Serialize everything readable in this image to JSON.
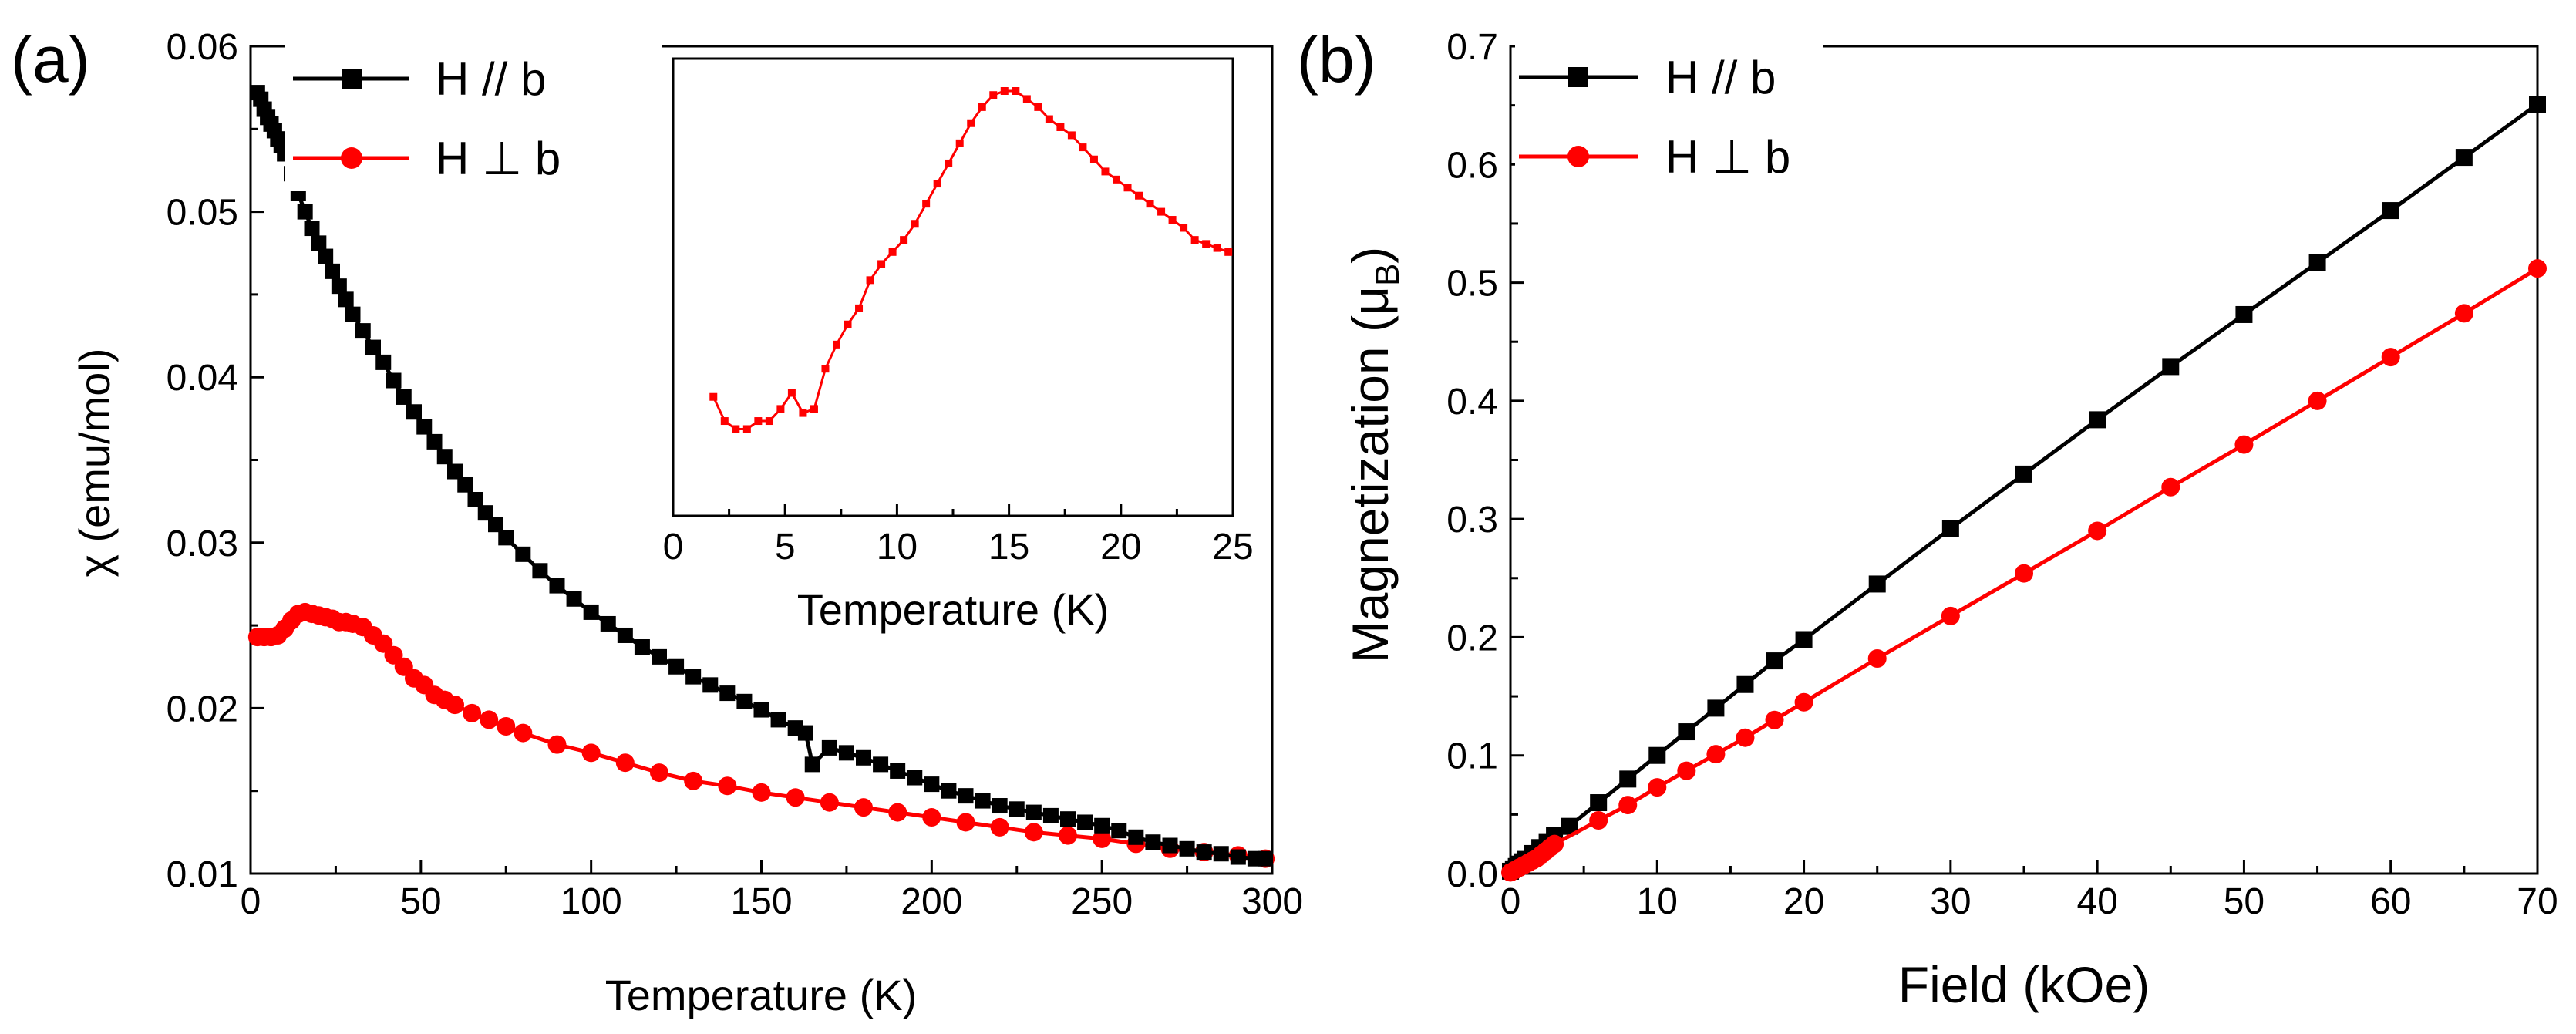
{
  "panels": [
    {
      "id": "a",
      "label": "(a)"
    },
    {
      "id": "b",
      "label": "(b)"
    }
  ],
  "chart_data": [
    {
      "type": "line",
      "panel": "(a)",
      "xlabel": "Temperature (K)",
      "ylabel": "χ (emu/mol)",
      "xlim": [
        0,
        300
      ],
      "ylim": [
        0.01,
        0.06
      ],
      "xticks": [
        "0",
        "50",
        "100",
        "150",
        "200",
        "250",
        "300"
      ],
      "yticks": [
        "0.01",
        "0.02",
        "0.03",
        "0.04",
        "0.05",
        "0.06"
      ],
      "legend_position": "top-left",
      "series": [
        {
          "name": "H // b",
          "color": "#000000",
          "marker": "square",
          "x": [
            2,
            3,
            4,
            5,
            6,
            7,
            8,
            9,
            10,
            12,
            14,
            16,
            18,
            20,
            22,
            24,
            26,
            28,
            30,
            33,
            36,
            39,
            42,
            45,
            48,
            51,
            54,
            57,
            60,
            63,
            66,
            69,
            72,
            75,
            80,
            85,
            90,
            95,
            100,
            105,
            110,
            115,
            120,
            125,
            130,
            135,
            140,
            145,
            150,
            155,
            160,
            163,
            165,
            170,
            175,
            180,
            185,
            190,
            195,
            200,
            205,
            210,
            215,
            220,
            225,
            230,
            235,
            240,
            245,
            250,
            255,
            260,
            265,
            270,
            275,
            280,
            285,
            290,
            295,
            298
          ],
          "y": [
            0.0572,
            0.0568,
            0.0562,
            0.0557,
            0.0553,
            0.0549,
            0.0544,
            0.054,
            0.0535,
            0.0523,
            0.0511,
            0.05,
            0.049,
            0.0481,
            0.0473,
            0.0464,
            0.0455,
            0.0447,
            0.0438,
            0.0428,
            0.0418,
            0.0409,
            0.0398,
            0.0388,
            0.0379,
            0.037,
            0.0361,
            0.0352,
            0.0343,
            0.0335,
            0.0326,
            0.0318,
            0.0311,
            0.0303,
            0.0293,
            0.0283,
            0.0274,
            0.0266,
            0.0258,
            0.0251,
            0.0244,
            0.0237,
            0.0231,
            0.0225,
            0.0219,
            0.0214,
            0.0209,
            0.0204,
            0.0199,
            0.0193,
            0.0188,
            0.0185,
            0.0166,
            0.0176,
            0.0173,
            0.017,
            0.0166,
            0.0162,
            0.0158,
            0.0154,
            0.015,
            0.0147,
            0.0144,
            0.0141,
            0.0139,
            0.0137,
            0.0135,
            0.0133,
            0.0131,
            0.0129,
            0.0126,
            0.0122,
            0.0119,
            0.0117,
            0.0115,
            0.0113,
            0.0112,
            0.011,
            0.0109,
            0.0109
          ]
        },
        {
          "name": "H ⊥ b",
          "color": "#ff0000",
          "marker": "circle",
          "x": [
            2,
            4,
            6,
            8,
            10,
            12,
            14,
            16,
            18,
            20,
            22,
            24,
            26,
            28,
            30,
            33,
            36,
            39,
            42,
            45,
            48,
            51,
            54,
            57,
            60,
            65,
            70,
            75,
            80,
            90,
            100,
            110,
            120,
            130,
            140,
            150,
            160,
            170,
            180,
            190,
            200,
            210,
            220,
            230,
            240,
            250,
            260,
            270,
            280,
            290,
            298
          ],
          "y": [
            0.0243,
            0.0243,
            0.0243,
            0.0244,
            0.0248,
            0.0253,
            0.0257,
            0.0258,
            0.0257,
            0.0256,
            0.0255,
            0.0254,
            0.0252,
            0.0252,
            0.0251,
            0.0249,
            0.0244,
            0.0239,
            0.0232,
            0.0225,
            0.0218,
            0.0214,
            0.0208,
            0.0205,
            0.0202,
            0.0197,
            0.0193,
            0.0189,
            0.0185,
            0.0178,
            0.0173,
            0.0167,
            0.0161,
            0.0156,
            0.0153,
            0.0149,
            0.0146,
            0.0143,
            0.014,
            0.0137,
            0.0134,
            0.0131,
            0.0128,
            0.0125,
            0.0123,
            0.0121,
            0.0118,
            0.0115,
            0.0113,
            0.0111,
            0.0109
          ]
        }
      ],
      "inset": {
        "xlabel": "Temperature (K)",
        "xlim": [
          0,
          25
        ],
        "xticks": [
          "0",
          "5",
          "10",
          "15",
          "20",
          "25"
        ],
        "series": [
          {
            "name": "H ⊥ b",
            "color": "#ff0000",
            "marker": "square",
            "x": [
              1.8,
              2.3,
              2.8,
              3.3,
              3.8,
              4.3,
              4.8,
              5.3,
              5.8,
              6.3,
              6.8,
              7.3,
              7.8,
              8.3,
              8.8,
              9.3,
              9.8,
              10.3,
              10.8,
              11.3,
              11.8,
              12.3,
              12.8,
              13.3,
              13.8,
              14.3,
              14.8,
              15.3,
              15.8,
              16.3,
              16.8,
              17.3,
              17.8,
              18.3,
              18.8,
              19.3,
              19.8,
              20.3,
              20.8,
              21.3,
              21.8,
              22.3,
              22.8,
              23.3,
              23.8,
              24.3,
              24.8
            ],
            "y": [
              0.24,
              0.18,
              0.16,
              0.16,
              0.18,
              0.18,
              0.21,
              0.25,
              0.2,
              0.21,
              0.31,
              0.37,
              0.42,
              0.46,
              0.53,
              0.57,
              0.6,
              0.63,
              0.67,
              0.72,
              0.77,
              0.82,
              0.87,
              0.92,
              0.96,
              0.99,
              1.0,
              1.0,
              0.98,
              0.96,
              0.93,
              0.91,
              0.89,
              0.86,
              0.83,
              0.8,
              0.78,
              0.76,
              0.74,
              0.72,
              0.7,
              0.68,
              0.66,
              0.63,
              0.62,
              0.61,
              0.6
            ]
          }
        ]
      }
    },
    {
      "type": "line",
      "panel": "(b)",
      "xlabel": "Field (kOe)",
      "ylabel": "Magnetization (μ",
      "ylabel_sub": "B",
      "ylabel_end": ")",
      "xlim": [
        0,
        70
      ],
      "ylim": [
        0,
        0.7
      ],
      "xticks": [
        "0",
        "10",
        "20",
        "30",
        "40",
        "50",
        "60",
        "70"
      ],
      "yticks": [
        "0.0",
        "0.1",
        "0.2",
        "0.3",
        "0.4",
        "0.5",
        "0.6",
        "0.7"
      ],
      "legend_position": "top-left",
      "series": [
        {
          "name": "H // b",
          "color": "#000000",
          "marker": "square",
          "x": [
            0,
            0.2,
            0.4,
            0.6,
            0.8,
            1,
            1.5,
            2,
            2.5,
            3,
            4,
            6,
            8,
            10,
            12,
            14,
            16,
            18,
            20,
            25,
            30,
            35,
            40,
            45,
            50,
            55,
            60,
            65,
            70
          ],
          "y": [
            0.002,
            0.004,
            0.006,
            0.008,
            0.01,
            0.012,
            0.017,
            0.022,
            0.027,
            0.032,
            0.04,
            0.06,
            0.08,
            0.1,
            0.12,
            0.14,
            0.16,
            0.18,
            0.198,
            0.245,
            0.292,
            0.338,
            0.384,
            0.429,
            0.473,
            0.517,
            0.561,
            0.606,
            0.651
          ]
        },
        {
          "name": "H ⊥ b",
          "color": "#ff0000",
          "marker": "circle",
          "x": [
            0,
            0.3,
            0.6,
            0.9,
            1.2,
            1.5,
            1.8,
            2.1,
            2.4,
            2.7,
            3,
            6,
            8,
            10,
            12,
            14,
            16,
            18,
            20,
            25,
            30,
            35,
            40,
            45,
            50,
            55,
            60,
            65,
            70
          ],
          "y": [
            0.001,
            0.003,
            0.005,
            0.007,
            0.009,
            0.011,
            0.013,
            0.016,
            0.019,
            0.022,
            0.025,
            0.045,
            0.058,
            0.073,
            0.087,
            0.101,
            0.115,
            0.13,
            0.145,
            0.182,
            0.218,
            0.254,
            0.29,
            0.327,
            0.363,
            0.4,
            0.437,
            0.474,
            0.512
          ]
        }
      ]
    }
  ]
}
